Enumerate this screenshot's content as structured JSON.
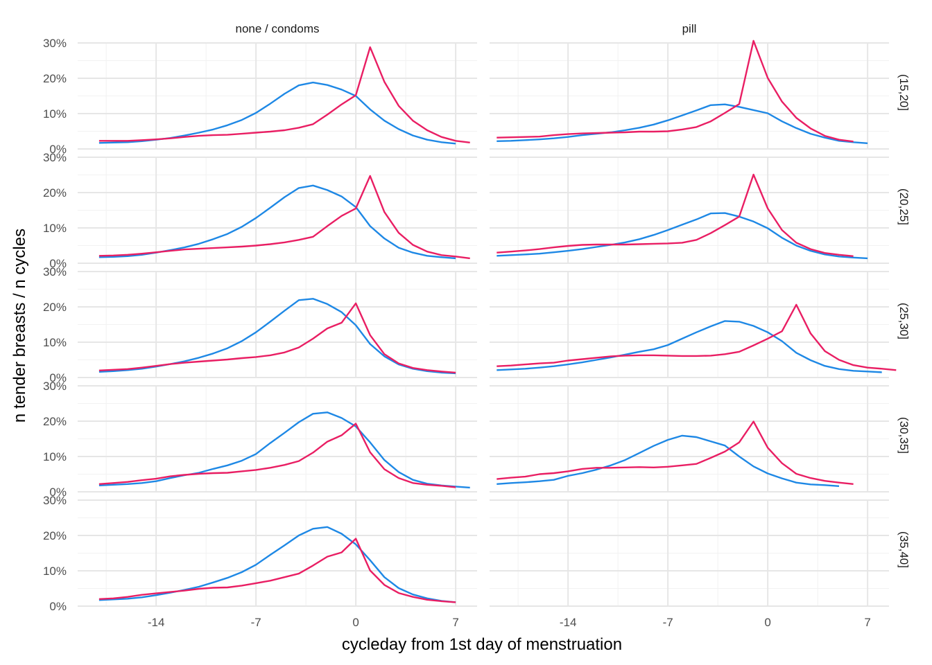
{
  "chart_data": {
    "type": "line",
    "xlabel": "cycleday from 1st day of menstruation",
    "ylabel": "n tender breasts / n cycles",
    "x_ticks": [
      -14,
      -7,
      0,
      7
    ],
    "y_ticks": [
      "0%",
      "10%",
      "20%",
      "30%"
    ],
    "ylim": [
      0,
      0.3
    ],
    "grid": true,
    "legend": "none",
    "columns": [
      "none / condoms",
      "pill"
    ],
    "rows": [
      "(15,20]",
      "(20,25]",
      "(25,30]",
      "(30,35]",
      "(35,40]"
    ],
    "series_colors": {
      "blue": "#1e88e5",
      "red": "#e91e63"
    },
    "panels": [
      {
        "row": "(15,20]",
        "col": "none / condoms",
        "x_start": -18,
        "blue": [
          0.017,
          0.018,
          0.019,
          0.022,
          0.026,
          0.031,
          0.038,
          0.046,
          0.055,
          0.067,
          0.082,
          0.102,
          0.128,
          0.156,
          0.18,
          0.188,
          0.181,
          0.168,
          0.15,
          0.112,
          0.08,
          0.056,
          0.038,
          0.026,
          0.019,
          0.015
        ],
        "red": [
          0.023,
          0.023,
          0.023,
          0.025,
          0.027,
          0.03,
          0.034,
          0.037,
          0.039,
          0.04,
          0.043,
          0.046,
          0.049,
          0.053,
          0.06,
          0.07,
          0.097,
          0.126,
          0.152,
          0.288,
          0.19,
          0.122,
          0.08,
          0.053,
          0.034,
          0.023,
          0.018
        ]
      },
      {
        "row": "(15,20]",
        "col": "pill",
        "x_start": -19,
        "blue": [
          0.022,
          0.023,
          0.025,
          0.027,
          0.03,
          0.034,
          0.039,
          0.043,
          0.047,
          0.053,
          0.06,
          0.069,
          0.081,
          0.095,
          0.109,
          0.124,
          0.126,
          0.119,
          0.11,
          0.101,
          0.078,
          0.059,
          0.043,
          0.032,
          0.023,
          0.019,
          0.016
        ],
        "red": [
          0.032,
          0.033,
          0.034,
          0.035,
          0.039,
          0.042,
          0.044,
          0.045,
          0.046,
          0.047,
          0.049,
          0.049,
          0.05,
          0.055,
          0.062,
          0.078,
          0.102,
          0.127,
          0.306,
          0.201,
          0.134,
          0.088,
          0.058,
          0.037,
          0.026,
          0.021
        ]
      },
      {
        "row": "(20,25]",
        "col": "none / condoms",
        "x_start": -18,
        "blue": [
          0.017,
          0.018,
          0.02,
          0.024,
          0.03,
          0.037,
          0.045,
          0.055,
          0.068,
          0.083,
          0.103,
          0.128,
          0.157,
          0.187,
          0.213,
          0.22,
          0.207,
          0.189,
          0.159,
          0.105,
          0.07,
          0.044,
          0.03,
          0.021,
          0.017,
          0.014
        ],
        "red": [
          0.021,
          0.022,
          0.024,
          0.027,
          0.031,
          0.035,
          0.039,
          0.041,
          0.043,
          0.045,
          0.047,
          0.05,
          0.054,
          0.059,
          0.066,
          0.075,
          0.105,
          0.134,
          0.155,
          0.247,
          0.145,
          0.086,
          0.052,
          0.033,
          0.023,
          0.019,
          0.014
        ]
      },
      {
        "row": "(20,25]",
        "col": "pill",
        "x_start": -19,
        "blue": [
          0.021,
          0.023,
          0.025,
          0.027,
          0.031,
          0.035,
          0.04,
          0.046,
          0.052,
          0.059,
          0.068,
          0.08,
          0.094,
          0.109,
          0.124,
          0.141,
          0.142,
          0.132,
          0.118,
          0.099,
          0.072,
          0.05,
          0.035,
          0.025,
          0.019,
          0.016,
          0.014
        ],
        "red": [
          0.03,
          0.033,
          0.036,
          0.04,
          0.045,
          0.049,
          0.052,
          0.053,
          0.053,
          0.053,
          0.054,
          0.055,
          0.056,
          0.058,
          0.066,
          0.085,
          0.108,
          0.132,
          0.251,
          0.155,
          0.094,
          0.058,
          0.04,
          0.029,
          0.024,
          0.02
        ]
      },
      {
        "row": "(25,30]",
        "col": "none / condoms",
        "x_start": -18,
        "blue": [
          0.016,
          0.018,
          0.021,
          0.025,
          0.031,
          0.038,
          0.046,
          0.056,
          0.068,
          0.083,
          0.103,
          0.128,
          0.158,
          0.189,
          0.219,
          0.223,
          0.208,
          0.185,
          0.148,
          0.095,
          0.06,
          0.037,
          0.025,
          0.018,
          0.014,
          0.012
        ],
        "red": [
          0.02,
          0.022,
          0.024,
          0.028,
          0.033,
          0.038,
          0.042,
          0.045,
          0.048,
          0.051,
          0.055,
          0.058,
          0.063,
          0.071,
          0.085,
          0.11,
          0.139,
          0.155,
          0.21,
          0.12,
          0.066,
          0.04,
          0.027,
          0.021,
          0.017,
          0.014
        ]
      },
      {
        "row": "(25,30]",
        "col": "pill",
        "x_start": -19,
        "blue": [
          0.021,
          0.023,
          0.025,
          0.028,
          0.032,
          0.037,
          0.043,
          0.05,
          0.057,
          0.065,
          0.073,
          0.08,
          0.092,
          0.11,
          0.128,
          0.145,
          0.16,
          0.158,
          0.146,
          0.128,
          0.103,
          0.07,
          0.049,
          0.033,
          0.024,
          0.019,
          0.017,
          0.015
        ],
        "red": [
          0.032,
          0.034,
          0.037,
          0.04,
          0.042,
          0.048,
          0.052,
          0.056,
          0.06,
          0.062,
          0.063,
          0.063,
          0.062,
          0.061,
          0.061,
          0.062,
          0.066,
          0.073,
          0.091,
          0.11,
          0.131,
          0.206,
          0.125,
          0.075,
          0.05,
          0.035,
          0.028,
          0.025,
          0.021
        ]
      },
      {
        "row": "(30,35]",
        "col": "none / condoms",
        "x_start": -18,
        "blue": [
          0.018,
          0.02,
          0.022,
          0.025,
          0.03,
          0.039,
          0.047,
          0.054,
          0.065,
          0.075,
          0.088,
          0.107,
          0.138,
          0.167,
          0.197,
          0.221,
          0.225,
          0.209,
          0.185,
          0.14,
          0.09,
          0.056,
          0.034,
          0.023,
          0.018,
          0.015,
          0.012
        ],
        "red": [
          0.022,
          0.025,
          0.028,
          0.033,
          0.037,
          0.044,
          0.048,
          0.051,
          0.053,
          0.054,
          0.058,
          0.062,
          0.068,
          0.076,
          0.087,
          0.111,
          0.142,
          0.16,
          0.193,
          0.112,
          0.064,
          0.039,
          0.025,
          0.02,
          0.017,
          0.013
        ]
      },
      {
        "row": "(30,35]",
        "col": "pill",
        "x_start": -19,
        "blue": [
          0.022,
          0.025,
          0.027,
          0.03,
          0.034,
          0.045,
          0.053,
          0.063,
          0.075,
          0.09,
          0.11,
          0.13,
          0.147,
          0.159,
          0.155,
          0.143,
          0.131,
          0.1,
          0.072,
          0.052,
          0.038,
          0.026,
          0.021,
          0.019,
          0.016
        ],
        "red": [
          0.036,
          0.04,
          0.043,
          0.05,
          0.053,
          0.058,
          0.065,
          0.068,
          0.068,
          0.069,
          0.07,
          0.069,
          0.071,
          0.075,
          0.079,
          0.096,
          0.114,
          0.14,
          0.199,
          0.125,
          0.081,
          0.051,
          0.039,
          0.031,
          0.026,
          0.022
        ]
      },
      {
        "row": "(35,40]",
        "col": "none / condoms",
        "x_start": -18,
        "blue": [
          0.017,
          0.019,
          0.021,
          0.025,
          0.031,
          0.038,
          0.046,
          0.055,
          0.067,
          0.08,
          0.096,
          0.117,
          0.145,
          0.172,
          0.2,
          0.219,
          0.224,
          0.205,
          0.175,
          0.13,
          0.082,
          0.051,
          0.033,
          0.022,
          0.015,
          0.011
        ],
        "red": [
          0.02,
          0.022,
          0.026,
          0.032,
          0.036,
          0.04,
          0.044,
          0.049,
          0.052,
          0.053,
          0.058,
          0.065,
          0.072,
          0.082,
          0.092,
          0.115,
          0.14,
          0.152,
          0.191,
          0.101,
          0.06,
          0.037,
          0.026,
          0.018,
          0.014,
          0.011
        ]
      }
    ]
  }
}
